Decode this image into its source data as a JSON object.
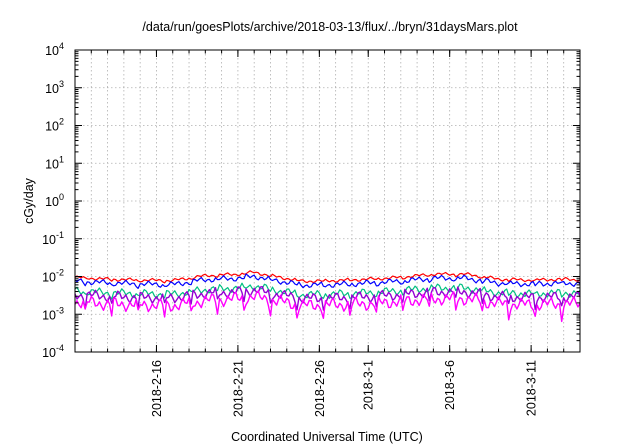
{
  "chart_data": {
    "type": "line",
    "title": "/data/run/goesPlots/archive/2018-03-13/flux/../bryn/31daysMars.plot",
    "xlabel": "Coordinated Universal Time (UTC)",
    "ylabel": "cGy/day",
    "yscale": "log",
    "ylim": [
      0.0001,
      10000
    ],
    "xlim": [
      "2018-02-11",
      "2018-03-14"
    ],
    "x_ticks": [
      "2018-2-16",
      "2018-2-21",
      "2018-2-26",
      "2018-3-1",
      "2018-3-6",
      "2018-3-11"
    ],
    "y_ticks": [
      {
        "base": "10",
        "exp": "4"
      },
      {
        "base": "10",
        "exp": "3"
      },
      {
        "base": "10",
        "exp": "2"
      },
      {
        "base": "10",
        "exp": "1"
      },
      {
        "base": "10",
        "exp": "0"
      },
      {
        "base": "10",
        "exp": "-1"
      },
      {
        "base": "10",
        "exp": "-2"
      },
      {
        "base": "10",
        "exp": "-3"
      },
      {
        "base": "10",
        "exp": "-4"
      }
    ],
    "grid": true,
    "series": [
      {
        "color": "#ff0000",
        "points": [
          [
            "2018-02-11",
            0.0095
          ],
          [
            "2018-02-13",
            0.0085
          ],
          [
            "2018-02-15",
            0.008
          ],
          [
            "2018-02-17",
            0.0078
          ],
          [
            "2018-02-19",
            0.0105
          ],
          [
            "2018-02-21",
            0.0115
          ],
          [
            "2018-02-22",
            0.013
          ],
          [
            "2018-02-23",
            0.0105
          ],
          [
            "2018-02-25",
            0.0075
          ],
          [
            "2018-02-27",
            0.0078
          ],
          [
            "2018-03-01",
            0.0085
          ],
          [
            "2018-03-03",
            0.0095
          ],
          [
            "2018-03-05",
            0.0115
          ],
          [
            "2018-03-07",
            0.0115
          ],
          [
            "2018-03-09",
            0.0085
          ],
          [
            "2018-03-11",
            0.008
          ],
          [
            "2018-03-13",
            0.0085
          ],
          [
            "2018-03-14",
            0.0082
          ]
        ]
      },
      {
        "color": "#0000ff",
        "points": [
          [
            "2018-02-11",
            0.0075
          ],
          [
            "2018-02-13",
            0.0068
          ],
          [
            "2018-02-15",
            0.0063
          ],
          [
            "2018-02-17",
            0.0061
          ],
          [
            "2018-02-19",
            0.0083
          ],
          [
            "2018-02-21",
            0.009
          ],
          [
            "2018-02-22",
            0.0102
          ],
          [
            "2018-02-23",
            0.0083
          ],
          [
            "2018-02-25",
            0.0059
          ],
          [
            "2018-02-27",
            0.0061
          ],
          [
            "2018-03-01",
            0.0067
          ],
          [
            "2018-03-03",
            0.0075
          ],
          [
            "2018-03-05",
            0.009
          ],
          [
            "2018-03-07",
            0.009
          ],
          [
            "2018-03-09",
            0.0067
          ],
          [
            "2018-03-11",
            0.0063
          ],
          [
            "2018-03-13",
            0.0067
          ],
          [
            "2018-03-14",
            0.0065
          ]
        ]
      },
      {
        "color": "#00c080",
        "points": [
          [
            "2018-02-11",
            0.0042
          ],
          [
            "2018-02-13",
            0.0037
          ],
          [
            "2018-02-15",
            0.0035
          ],
          [
            "2018-02-17",
            0.0034
          ],
          [
            "2018-02-19",
            0.0045
          ],
          [
            "2018-02-21",
            0.005
          ],
          [
            "2018-02-22",
            0.0056
          ],
          [
            "2018-02-23",
            0.0046
          ],
          [
            "2018-02-25",
            0.0033
          ],
          [
            "2018-02-27",
            0.0034
          ],
          [
            "2018-03-01",
            0.0037
          ],
          [
            "2018-03-03",
            0.0042
          ],
          [
            "2018-03-05",
            0.005
          ],
          [
            "2018-03-07",
            0.005
          ],
          [
            "2018-03-09",
            0.0037
          ],
          [
            "2018-03-11",
            0.0035
          ],
          [
            "2018-03-13",
            0.0037
          ],
          [
            "2018-03-14",
            0.0036
          ]
        ]
      },
      {
        "color": "#9400d3",
        "points": [
          [
            "2018-02-11",
            0.0033
          ],
          [
            "2018-02-13",
            0.003
          ],
          [
            "2018-02-15",
            0.0028
          ],
          [
            "2018-02-17",
            0.0027
          ],
          [
            "2018-02-19",
            0.0036
          ],
          [
            "2018-02-21",
            0.0039
          ],
          [
            "2018-02-22",
            0.0044
          ],
          [
            "2018-02-23",
            0.0036
          ],
          [
            "2018-02-25",
            0.0026
          ],
          [
            "2018-02-27",
            0.0027
          ],
          [
            "2018-03-01",
            0.0029
          ],
          [
            "2018-03-03",
            0.0033
          ],
          [
            "2018-03-05",
            0.0039
          ],
          [
            "2018-03-07",
            0.0039
          ],
          [
            "2018-03-09",
            0.0029
          ],
          [
            "2018-03-11",
            0.0028
          ],
          [
            "2018-03-13",
            0.0029
          ],
          [
            "2018-03-14",
            0.0029
          ]
        ]
      },
      {
        "color": "#ff00ff",
        "points": [
          [
            "2018-02-11",
            0.0022
          ],
          [
            "2018-02-13",
            0.0019
          ],
          [
            "2018-02-15",
            0.0018
          ],
          [
            "2018-02-17",
            0.0017
          ],
          [
            "2018-02-19",
            0.0023
          ],
          [
            "2018-02-21",
            0.0026
          ],
          [
            "2018-02-22",
            0.0029
          ],
          [
            "2018-02-23",
            0.0024
          ],
          [
            "2018-02-25",
            0.0017
          ],
          [
            "2018-02-27",
            0.0018
          ],
          [
            "2018-03-01",
            0.0019
          ],
          [
            "2018-03-03",
            0.0022
          ],
          [
            "2018-03-05",
            0.0026
          ],
          [
            "2018-03-07",
            0.0026
          ],
          [
            "2018-03-09",
            0.0019
          ],
          [
            "2018-03-11",
            0.0018
          ],
          [
            "2018-03-13",
            0.0019
          ],
          [
            "2018-03-14",
            0.0019
          ]
        ]
      }
    ]
  }
}
